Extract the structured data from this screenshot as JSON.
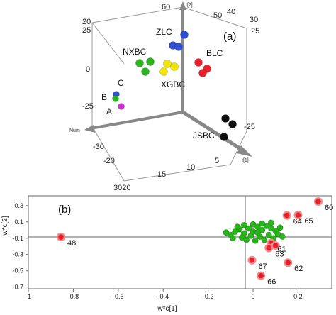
{
  "panels": {
    "a": {
      "label": "(a)"
    },
    "b": {
      "label": "(b)"
    }
  },
  "colors": {
    "axis": "#777777",
    "red": "#e8202a",
    "red_outline": "#f08a8a",
    "green": "#2bb51d",
    "blue": "#2e4fd6",
    "yellow": "#f2e600",
    "black": "#111111",
    "magenta": "#cc33cc"
  },
  "chart_data": [
    {
      "type": "scatter",
      "title": "(a)",
      "projection": "3d",
      "axis_labels": {
        "x": "t[1]",
        "y": "t[2]",
        "z": "Num"
      },
      "tick_labels": {
        "top_left": [
          "20",
          "25"
        ],
        "left": [
          "0",
          "-25"
        ],
        "right": [
          "30",
          "25",
          "-25"
        ],
        "top_axis": [
          "60",
          "50",
          "40"
        ],
        "bottom_left": [
          "-30",
          "-20"
        ],
        "bottom_mid": [
          "15",
          "10",
          "5"
        ],
        "bottom_corner": "3020"
      },
      "groups": [
        {
          "name": "ZLC",
          "color": "blue",
          "points": 3
        },
        {
          "name": "NXBC",
          "color": "green",
          "points": 3
        },
        {
          "name": "XGBC",
          "color": "yellow",
          "points": 3
        },
        {
          "name": "BLC",
          "color": "red",
          "points": 3
        },
        {
          "name": "JSBC",
          "color": "black",
          "points": 3
        },
        {
          "name": "A",
          "color": "magenta",
          "points": 1
        },
        {
          "name": "B",
          "color": "green",
          "points": 1
        },
        {
          "name": "C",
          "color": "blue",
          "points": 1
        }
      ]
    },
    {
      "type": "scatter",
      "title": "(b)",
      "xlabel": "w*c[1]",
      "ylabel": "w*c[2]",
      "xlim": [
        -1,
        0.35
      ],
      "ylim": [
        -0.72,
        0.42
      ],
      "xticks": [
        "-1",
        "-0.8",
        "-0.6",
        "-0.4",
        "-0.2",
        "0",
        "0.2"
      ],
      "yticks": [
        "0.3",
        "0.1",
        "-0.1",
        "-0.3",
        "-0.5",
        "-0.7"
      ],
      "highlighted": [
        {
          "label": "48",
          "x": -0.855,
          "y": -0.085
        },
        {
          "label": "60",
          "x": 0.29,
          "y": 0.35
        },
        {
          "label": "64",
          "x": 0.15,
          "y": 0.18
        },
        {
          "label": "65",
          "x": 0.2,
          "y": 0.185
        },
        {
          "label": "61",
          "x": 0.08,
          "y": -0.16
        },
        {
          "label": "63",
          "x": 0.07,
          "y": -0.22
        },
        {
          "label": "67",
          "x": -0.005,
          "y": -0.37
        },
        {
          "label": "62",
          "x": 0.155,
          "y": -0.4
        },
        {
          "label": "66",
          "x": 0.035,
          "y": -0.56
        },
        {
          "x": 0.1,
          "y": -0.19
        }
      ],
      "other_points": [
        [
          -0.1,
          -0.06
        ],
        [
          -0.08,
          -0.02
        ],
        [
          -0.06,
          0.01
        ],
        [
          -0.04,
          -0.04
        ],
        [
          -0.02,
          0.02
        ],
        [
          0.0,
          -0.02
        ],
        [
          0.02,
          0.04
        ],
        [
          0.04,
          0.0
        ],
        [
          0.06,
          0.05
        ],
        [
          0.08,
          0.02
        ],
        [
          0.1,
          -0.01
        ],
        [
          0.12,
          0.03
        ],
        [
          -0.09,
          -0.1
        ],
        [
          -0.05,
          -0.09
        ],
        [
          -0.01,
          -0.07
        ],
        [
          0.03,
          -0.08
        ],
        [
          0.07,
          -0.06
        ],
        [
          0.11,
          -0.05
        ],
        [
          0.05,
          -0.12
        ],
        [
          0.01,
          -0.13
        ],
        [
          -0.03,
          -0.12
        ],
        [
          0.09,
          -0.1
        ],
        [
          -0.07,
          0.04
        ],
        [
          0.0,
          0.07
        ],
        [
          0.04,
          0.08
        ],
        [
          0.08,
          0.09
        ],
        [
          -0.12,
          -0.03
        ],
        [
          0.13,
          -0.08
        ],
        [
          0.02,
          -0.03
        ],
        [
          -0.04,
          0.06
        ]
      ]
    }
  ]
}
